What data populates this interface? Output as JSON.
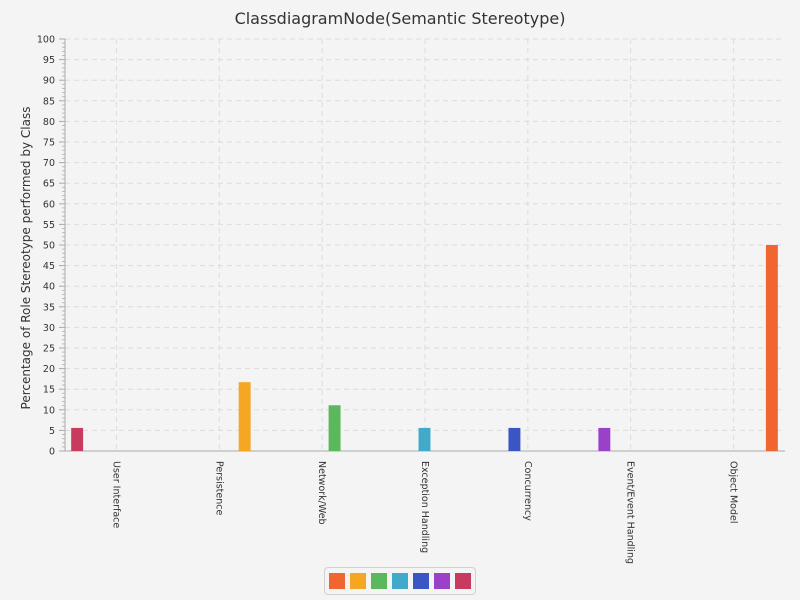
{
  "chart_data": {
    "type": "bar",
    "title": "ClassdiagramNode(Semantic Stereotype)",
    "xlabel": "",
    "ylabel": "Percentage of Role Stereotype performed by Class",
    "ylim": [
      0,
      100
    ],
    "y_ticks": [
      0,
      5,
      10,
      15,
      20,
      25,
      30,
      35,
      40,
      45,
      50,
      55,
      60,
      65,
      70,
      75,
      80,
      85,
      90,
      95,
      100
    ],
    "grid": true,
    "legend_position": "bottom",
    "categories": [
      "User Interface",
      "Persistence",
      "Network/Web",
      "Exception Handling",
      "Concurrency",
      "Event/Event Handling",
      "Object Model"
    ],
    "series": [
      {
        "color": "#f06530",
        "values": [
          0,
          0,
          0,
          0,
          0,
          0,
          50
        ]
      },
      {
        "color": "#f5a623",
        "values": [
          0,
          16.7,
          0,
          0,
          0,
          0,
          0
        ]
      },
      {
        "color": "#5cb85c",
        "values": [
          0,
          0,
          11.1,
          0,
          0,
          0,
          0
        ]
      },
      {
        "color": "#41a9c9",
        "values": [
          0,
          0,
          0,
          5.6,
          0,
          0,
          0
        ]
      },
      {
        "color": "#3a55c4",
        "values": [
          0,
          0,
          0,
          0,
          5.6,
          0,
          0
        ]
      },
      {
        "color": "#9b40c9",
        "values": [
          0,
          0,
          0,
          0,
          0,
          5.6,
          0
        ]
      },
      {
        "color": "#c83a5e",
        "values": [
          5.6,
          0,
          0,
          0,
          0,
          0,
          0
        ]
      }
    ]
  }
}
